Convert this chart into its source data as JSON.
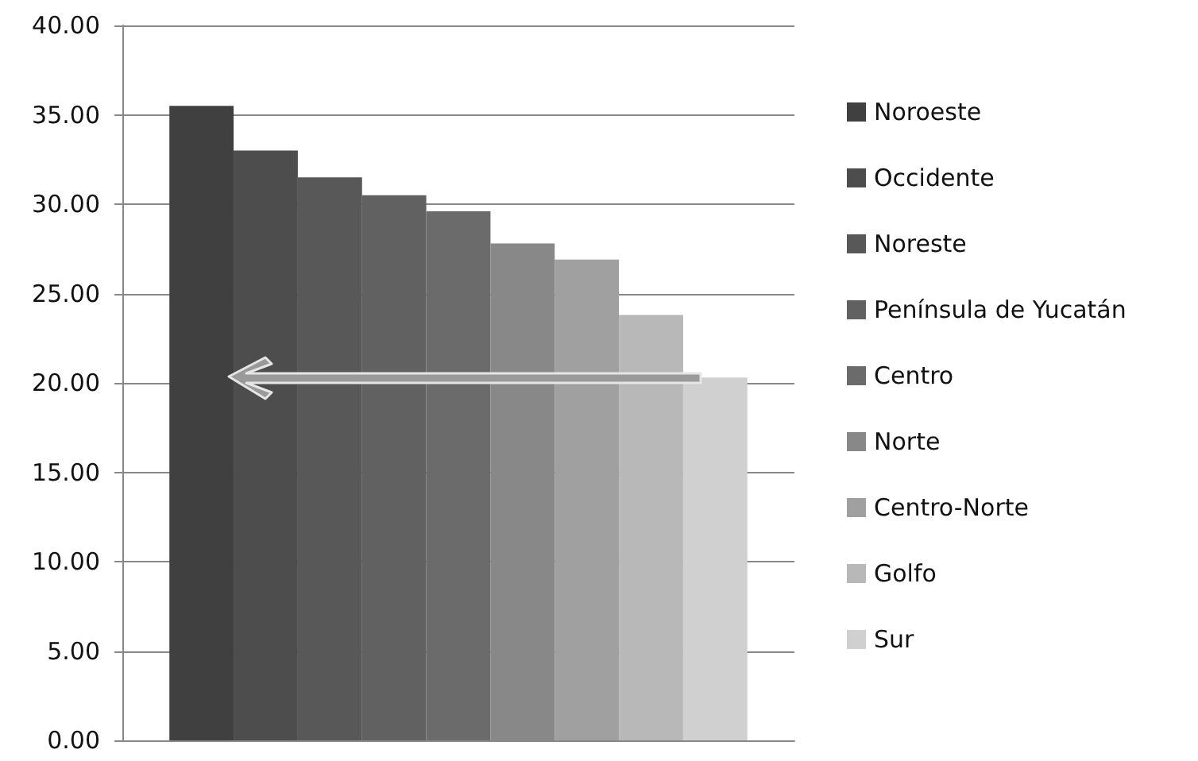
{
  "chart_data": {
    "type": "bar",
    "categories": [
      null
    ],
    "series": [
      {
        "name": "Noroeste",
        "color": "#404040",
        "values": [
          35.5
        ]
      },
      {
        "name": "Occidente",
        "color": "#4d4d4d",
        "values": [
          33.0
        ]
      },
      {
        "name": "Noreste",
        "color": "#585858",
        "values": [
          31.5
        ]
      },
      {
        "name": "Península de Yucatán",
        "color": "#616161",
        "values": [
          30.5
        ]
      },
      {
        "name": "Centro",
        "color": "#6b6b6b",
        "values": [
          29.6
        ]
      },
      {
        "name": "Norte",
        "color": "#888888",
        "values": [
          27.8
        ]
      },
      {
        "name": "Centro-Norte",
        "color": "#a0a0a0",
        "values": [
          26.9
        ]
      },
      {
        "name": "Golfo",
        "color": "#b8b8b8",
        "values": [
          23.8
        ]
      },
      {
        "name": "Sur",
        "color": "#d0d0d0",
        "values": [
          20.3
        ]
      }
    ],
    "ylim": [
      0,
      40
    ],
    "yticks": [
      {
        "value": 0,
        "label": "0.00"
      },
      {
        "value": 5,
        "label": "5.00"
      },
      {
        "value": 10,
        "label": "10.00"
      },
      {
        "value": 15,
        "label": "15.00"
      },
      {
        "value": 20,
        "label": "20.00"
      },
      {
        "value": 25,
        "label": "25.00"
      },
      {
        "value": 30,
        "label": "30.00"
      },
      {
        "value": 35,
        "label": "35.00"
      },
      {
        "value": 40,
        "label": "40.00"
      }
    ],
    "grid": "y",
    "legend": "right"
  }
}
